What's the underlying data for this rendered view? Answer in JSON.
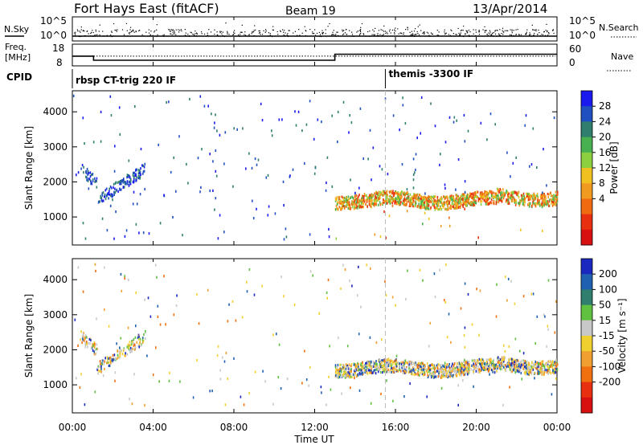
{
  "header": {
    "title": "Fort Hays East (fitACF)",
    "beam": "Beam 19",
    "date": "13/Apr/2014"
  },
  "sky_panel": {
    "left_label": "N.Sky",
    "left_ticks": [
      "10^5",
      "10^0"
    ],
    "right_ticks": [
      "10^5",
      "10^0"
    ],
    "right_label": "N.Search",
    "right_label_style": "dotted"
  },
  "freq_panel": {
    "left_label_top": "Freq.",
    "left_label_bottom": "[MHz]",
    "left_ticks": [
      "18",
      "8"
    ],
    "right_ticks": [
      "60",
      "0"
    ],
    "right_label": "Nave",
    "right_label_style": "dotted",
    "freq_steps": [
      {
        "start_h": 0.0,
        "end_h": 1.05,
        "value": 13.5
      },
      {
        "start_h": 1.05,
        "end_h": 13.0,
        "value": 11.2
      },
      {
        "start_h": 13.0,
        "end_h": 24.0,
        "value": 14.6
      }
    ],
    "nave_level": 0.55
  },
  "cpid": {
    "label": "CPID",
    "programs": [
      {
        "start_h": 0.0,
        "name": "rbsp CT-trig 220 IF"
      },
      {
        "start_h": 15.5,
        "name": "themis -3300 IF"
      }
    ]
  },
  "chart_data": [
    {
      "type": "heatmap",
      "name": "power",
      "ylabel": "Slant Range [km]",
      "yticks": [
        "1000",
        "2000",
        "3000",
        "4000"
      ],
      "ylim": [
        200,
        4600
      ],
      "xlim": [
        0,
        24
      ],
      "colorbar": {
        "label": "Power [dB]",
        "ticks": [
          "28",
          "24",
          "20",
          "16",
          "12",
          "8",
          "4"
        ],
        "colors": [
          "#1a1aee",
          "#2050c0",
          "#2f7e6e",
          "#48b050",
          "#8cd040",
          "#f0c020",
          "#f09a20",
          "#f06a10",
          "#e83010",
          "#d81010"
        ]
      },
      "marker_hour": 15.5
    },
    {
      "type": "heatmap",
      "name": "velocity",
      "ylabel": "Slant Range [km]",
      "yticks": [
        "1000",
        "2000",
        "3000",
        "4000"
      ],
      "ylim": [
        200,
        4600
      ],
      "xlim": [
        0,
        24
      ],
      "colorbar": {
        "label": "Velocity [m s⁻¹]",
        "ticks": [
          "200",
          "100",
          "50",
          "15",
          "-15",
          "-50",
          "-100",
          "-200"
        ],
        "colors": [
          "#1a28c0",
          "#2060b0",
          "#2f7e6e",
          "#60c040",
          "#c8c8c8",
          "#f0d030",
          "#f0a030",
          "#f07010",
          "#e83010",
          "#d81010"
        ]
      },
      "marker_hour": 15.5
    }
  ],
  "x_axis": {
    "ticks": [
      "00:00",
      "04:00",
      "08:00",
      "12:00",
      "16:00",
      "20:00",
      "00:00"
    ],
    "label": "Time UT"
  }
}
